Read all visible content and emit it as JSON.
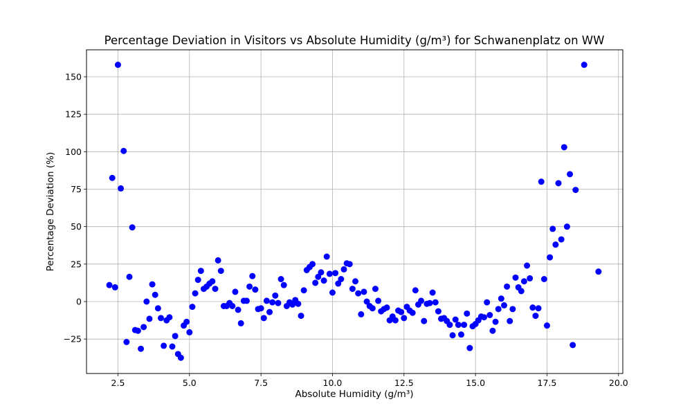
{
  "chart_data": {
    "type": "scatter",
    "title": "Percentage Deviation in Visitors vs Absolute Humidity (g/m³) for Schwanenplatz on WW",
    "xlabel": "Absolute Humidity (g/m³)",
    "ylabel": "Percentage Deviation (%)",
    "xlim": [
      1.4,
      20.15
    ],
    "ylim": [
      -48,
      168
    ],
    "xticks": [
      2.5,
      5.0,
      7.5,
      10.0,
      12.5,
      15.0,
      17.5,
      20.0
    ],
    "xtick_labels": [
      "2.5",
      "5.0",
      "7.5",
      "10.0",
      "12.5",
      "15.0",
      "17.5",
      "20.0"
    ],
    "yticks": [
      -25,
      0,
      25,
      50,
      75,
      100,
      125,
      150
    ],
    "ytick_labels": [
      "−25",
      "0",
      "25",
      "50",
      "75",
      "100",
      "125",
      "150"
    ],
    "grid": true,
    "marker_color": "#0000ff",
    "series": [
      {
        "name": "Schwanenplatz",
        "points": [
          [
            2.2,
            11
          ],
          [
            2.3,
            82.5
          ],
          [
            2.4,
            9.5
          ],
          [
            2.5,
            158
          ],
          [
            2.6,
            75.5
          ],
          [
            2.7,
            100.5
          ],
          [
            2.8,
            -27
          ],
          [
            2.9,
            16.5
          ],
          [
            3.0,
            49.5
          ],
          [
            3.1,
            -19
          ],
          [
            3.2,
            -19.5
          ],
          [
            3.3,
            -31.5
          ],
          [
            3.4,
            -17
          ],
          [
            3.5,
            0
          ],
          [
            3.6,
            -11.5
          ],
          [
            3.7,
            11.5
          ],
          [
            3.8,
            4.5
          ],
          [
            3.9,
            -4.5
          ],
          [
            4.0,
            -11
          ],
          [
            4.1,
            -29.5
          ],
          [
            4.2,
            -12.5
          ],
          [
            4.3,
            -10.5
          ],
          [
            4.4,
            -30
          ],
          [
            4.5,
            -23
          ],
          [
            4.6,
            -35
          ],
          [
            4.7,
            -37.5
          ],
          [
            4.8,
            -16
          ],
          [
            4.9,
            -13.5
          ],
          [
            5.0,
            -20.5
          ],
          [
            5.1,
            -3.5
          ],
          [
            5.2,
            5.5
          ],
          [
            5.3,
            14.5
          ],
          [
            5.4,
            20.5
          ],
          [
            5.5,
            8.5
          ],
          [
            5.6,
            10
          ],
          [
            5.7,
            12
          ],
          [
            5.8,
            13.5
          ],
          [
            5.9,
            8.5
          ],
          [
            6.0,
            27.5
          ],
          [
            6.1,
            20.5
          ],
          [
            6.2,
            -3
          ],
          [
            6.3,
            -3
          ],
          [
            6.4,
            -1
          ],
          [
            6.5,
            -3
          ],
          [
            6.6,
            6.5
          ],
          [
            6.7,
            -5.5
          ],
          [
            6.8,
            -14.5
          ],
          [
            6.9,
            0.5
          ],
          [
            7.0,
            0.5
          ],
          [
            7.1,
            10
          ],
          [
            7.2,
            17
          ],
          [
            7.3,
            8
          ],
          [
            7.4,
            -5
          ],
          [
            7.5,
            -4.5
          ],
          [
            7.6,
            -11
          ],
          [
            7.7,
            0.5
          ],
          [
            7.8,
            -7
          ],
          [
            7.9,
            -0.5
          ],
          [
            8.0,
            4
          ],
          [
            8.1,
            -1
          ],
          [
            8.2,
            15
          ],
          [
            8.3,
            11
          ],
          [
            8.4,
            -3
          ],
          [
            8.5,
            -0.5
          ],
          [
            8.6,
            -2
          ],
          [
            8.7,
            1
          ],
          [
            8.8,
            -1.5
          ],
          [
            8.9,
            -9.5
          ],
          [
            9.0,
            7.5
          ],
          [
            9.1,
            21
          ],
          [
            9.2,
            23
          ],
          [
            9.3,
            25
          ],
          [
            9.4,
            12.5
          ],
          [
            9.5,
            16.5
          ],
          [
            9.6,
            19.5
          ],
          [
            9.7,
            14
          ],
          [
            9.8,
            30
          ],
          [
            9.9,
            18.5
          ],
          [
            10.0,
            6
          ],
          [
            10.1,
            19
          ],
          [
            10.2,
            12
          ],
          [
            10.3,
            15
          ],
          [
            10.4,
            21.5
          ],
          [
            10.5,
            25.5
          ],
          [
            10.6,
            25
          ],
          [
            10.7,
            8.5
          ],
          [
            10.8,
            13.5
          ],
          [
            10.9,
            5.5
          ],
          [
            11.0,
            -8.5
          ],
          [
            11.1,
            6.5
          ],
          [
            11.2,
            0
          ],
          [
            11.3,
            -3
          ],
          [
            11.4,
            -4.5
          ],
          [
            11.5,
            8.5
          ],
          [
            11.6,
            0.5
          ],
          [
            11.7,
            -6.5
          ],
          [
            11.8,
            -5
          ],
          [
            11.9,
            -4
          ],
          [
            12.0,
            -12.5
          ],
          [
            12.1,
            -10
          ],
          [
            12.2,
            -12.5
          ],
          [
            12.3,
            -6
          ],
          [
            12.4,
            -7
          ],
          [
            12.5,
            -11
          ],
          [
            12.6,
            -3.5
          ],
          [
            12.7,
            -6
          ],
          [
            12.8,
            -7.5
          ],
          [
            12.9,
            7.5
          ],
          [
            13.0,
            -2
          ],
          [
            13.1,
            0.5
          ],
          [
            13.2,
            -13
          ],
          [
            13.3,
            -1.5
          ],
          [
            13.4,
            -1
          ],
          [
            13.5,
            6
          ],
          [
            13.6,
            -0.5
          ],
          [
            13.7,
            -6.5
          ],
          [
            13.8,
            -11.5
          ],
          [
            13.9,
            -11
          ],
          [
            14.0,
            -13
          ],
          [
            14.1,
            -15.5
          ],
          [
            14.2,
            -22.5
          ],
          [
            14.3,
            -12
          ],
          [
            14.4,
            -15.5
          ],
          [
            14.5,
            -22
          ],
          [
            14.6,
            -15.5
          ],
          [
            14.7,
            -8
          ],
          [
            14.8,
            -31
          ],
          [
            14.9,
            -16.5
          ],
          [
            15.0,
            -15
          ],
          [
            15.1,
            -12.5
          ],
          [
            15.2,
            -10
          ],
          [
            15.3,
            -10.5
          ],
          [
            15.4,
            -0.5
          ],
          [
            15.5,
            -9
          ],
          [
            15.6,
            -19.5
          ],
          [
            15.7,
            -13.5
          ],
          [
            15.8,
            -5
          ],
          [
            15.9,
            2
          ],
          [
            16.0,
            -2.5
          ],
          [
            16.1,
            10
          ],
          [
            16.2,
            -13
          ],
          [
            16.3,
            -5
          ],
          [
            16.4,
            16
          ],
          [
            16.5,
            9.5
          ],
          [
            16.6,
            7
          ],
          [
            16.7,
            13.5
          ],
          [
            16.8,
            24
          ],
          [
            16.9,
            15.5
          ],
          [
            17.0,
            -4
          ],
          [
            17.1,
            -9.5
          ],
          [
            17.2,
            -4.5
          ],
          [
            17.3,
            80
          ],
          [
            17.4,
            15
          ],
          [
            17.5,
            -16
          ],
          [
            17.6,
            29.5
          ],
          [
            17.7,
            48.5
          ],
          [
            17.8,
            38
          ],
          [
            17.9,
            79
          ],
          [
            18.0,
            41.5
          ],
          [
            18.1,
            103
          ],
          [
            18.2,
            50
          ],
          [
            18.3,
            85
          ],
          [
            18.4,
            -29
          ],
          [
            18.5,
            74.5
          ],
          [
            18.8,
            158
          ],
          [
            19.3,
            20
          ]
        ]
      }
    ]
  }
}
